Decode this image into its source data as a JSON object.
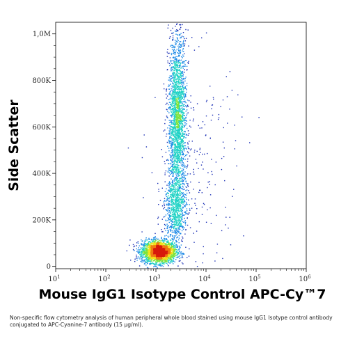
{
  "chart_data": {
    "type": "scatter",
    "subtype": "flow-cytometry density dot plot",
    "xlabel": "Mouse IgG1 Isotype Control APC-Cy™7",
    "ylabel": "Side Scatter",
    "x_scale": "log",
    "xlim": [
      10,
      1000000
    ],
    "x_ticks": [
      {
        "base": "10",
        "exp": "1"
      },
      {
        "base": "10",
        "exp": "2"
      },
      {
        "base": "10",
        "exp": "3"
      },
      {
        "base": "10",
        "exp": "4"
      },
      {
        "base": "10",
        "exp": "5"
      },
      {
        "base": "10",
        "exp": "6"
      }
    ],
    "x_tick_values": [
      10,
      100,
      1000,
      10000,
      100000,
      1000000
    ],
    "y_scale": "linear",
    "ylim": [
      -10000,
      1050000
    ],
    "y_ticks": [
      "0",
      "200K",
      "400K",
      "600K",
      "800K",
      "1,0M"
    ],
    "y_tick_values": [
      0,
      200000,
      400000,
      600000,
      800000,
      1000000
    ],
    "color_scale": [
      "#1a2fb5",
      "#1f8ae6",
      "#21d3c5",
      "#7de33a",
      "#f2e21a",
      "#f07a12",
      "#d81a0c"
    ],
    "populations": [
      {
        "x_log10_center": 3.05,
        "y_center": 65000,
        "x_log10_sd": 0.17,
        "y_sd": 24000,
        "count": 2600
      },
      {
        "x_log10_center": 3.42,
        "y_center": 620000,
        "x_log10_sd": 0.09,
        "y_sd": 190000,
        "count": 2400
      },
      {
        "x_log10_center": 3.38,
        "y_center": 250000,
        "x_log10_sd": 0.11,
        "y_sd": 70000,
        "count": 700
      },
      {
        "x_log10_center": 3.8,
        "y_center": 420000,
        "x_log10_sd": 0.45,
        "y_sd": 250000,
        "count": 220
      }
    ]
  },
  "caption": "Non-specific flow cytometry analysis of human peripheral whole blood stained using mouse IgG1 Isotype control antibody conjugated to APC-Cyanine-7 antibody (15 µg/ml)."
}
